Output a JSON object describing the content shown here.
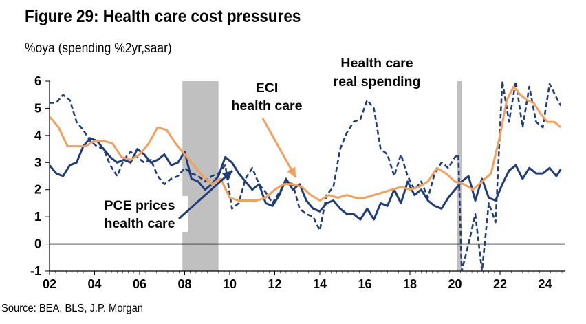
{
  "title": "Figure 29: Health care cost pressures",
  "subtitle": "%oya (spending %2yr,saar)",
  "source": "Source: BEA, BLS, J.P. Morgan",
  "colors": {
    "pce": "#1f3d78",
    "eci": "#f5a05a",
    "spending": "#1f3d78",
    "recession": "#c0c0c0"
  },
  "chart_data": {
    "type": "line",
    "title": "Figure 29: Health care cost pressures",
    "ylabel": "%oya (spending %2yr,saar)",
    "xlim": [
      2002.0,
      2024.9
    ],
    "ylim": [
      -1,
      6
    ],
    "yticks": [
      -1,
      0,
      1,
      2,
      3,
      4,
      5,
      6
    ],
    "ytick_labels": [
      "-1",
      "0",
      "1",
      "2",
      "3",
      "4",
      "5",
      "6"
    ],
    "xticks": [
      2002,
      2004,
      2006,
      2008,
      2010,
      2012,
      2014,
      2016,
      2018,
      2020,
      2022,
      2024
    ],
    "xtick_labels": [
      "02",
      "04",
      "06",
      "08",
      "10",
      "12",
      "14",
      "16",
      "18",
      "20",
      "22",
      "24"
    ],
    "recessions": [
      [
        2007.9,
        2009.5
      ],
      [
        2020.1,
        2020.3
      ]
    ],
    "zero_line": true,
    "grid": false,
    "annotations": [
      {
        "text": [
          "PCE prices",
          "health care"
        ],
        "series": "PCE prices health care"
      },
      {
        "text": [
          "ECI",
          "health care"
        ],
        "series": "ECI health care"
      },
      {
        "text": [
          "Health care",
          "real spending"
        ],
        "series": "Health care real spending"
      }
    ],
    "series": [
      {
        "name": "PCE prices health care",
        "style": "solid",
        "color": "#1f3d78",
        "x": [
          2002.0,
          2002.3,
          2002.6,
          2002.9,
          2003.2,
          2003.5,
          2003.8,
          2004.1,
          2004.4,
          2004.7,
          2005.0,
          2005.3,
          2005.6,
          2005.9,
          2006.2,
          2006.5,
          2006.8,
          2007.1,
          2007.4,
          2007.7,
          2008.0,
          2008.3,
          2008.6,
          2008.9,
          2009.2,
          2009.5,
          2009.8,
          2010.1,
          2010.4,
          2010.7,
          2011.0,
          2011.3,
          2011.6,
          2011.9,
          2012.2,
          2012.5,
          2012.8,
          2013.1,
          2013.4,
          2013.7,
          2014.0,
          2014.3,
          2014.6,
          2014.9,
          2015.2,
          2015.5,
          2015.8,
          2016.1,
          2016.4,
          2016.7,
          2017.0,
          2017.3,
          2017.6,
          2017.9,
          2018.2,
          2018.5,
          2018.8,
          2019.1,
          2019.4,
          2019.7,
          2020.0,
          2020.3,
          2020.6,
          2020.9,
          2021.2,
          2021.5,
          2021.8,
          2022.1,
          2022.4,
          2022.7,
          2023.0,
          2023.3,
          2023.6,
          2023.9,
          2024.2,
          2024.5,
          2024.7
        ],
        "y": [
          2.9,
          2.6,
          2.5,
          2.9,
          3.0,
          3.6,
          3.9,
          3.8,
          3.5,
          3.2,
          3.0,
          3.1,
          3.0,
          3.5,
          3.3,
          3.0,
          3.1,
          3.3,
          2.9,
          3.0,
          3.4,
          2.4,
          2.3,
          2.0,
          2.2,
          2.5,
          3.2,
          3.0,
          2.6,
          2.3,
          2.0,
          2.2,
          1.5,
          1.4,
          1.8,
          2.4,
          2.0,
          2.2,
          1.6,
          1.3,
          1.2,
          1.5,
          1.6,
          1.3,
          1.1,
          1.1,
          0.9,
          1.3,
          0.9,
          1.5,
          1.4,
          2.0,
          1.5,
          2.3,
          1.8,
          2.0,
          1.6,
          1.4,
          1.3,
          1.7,
          2.0,
          2.3,
          2.5,
          1.6,
          2.4,
          1.7,
          1.6,
          2.2,
          2.7,
          2.9,
          2.4,
          2.8,
          2.6,
          2.6,
          2.8,
          2.5,
          2.75
        ]
      },
      {
        "name": "ECI health care",
        "style": "solid",
        "color": "#f5a05a",
        "x": [
          2002.0,
          2002.4,
          2002.8,
          2003.2,
          2003.6,
          2004.0,
          2004.4,
          2004.8,
          2005.2,
          2005.6,
          2006.0,
          2006.4,
          2006.8,
          2007.2,
          2007.6,
          2008.0,
          2008.4,
          2008.8,
          2009.2,
          2009.6,
          2010.0,
          2010.4,
          2010.8,
          2011.2,
          2011.6,
          2012.0,
          2012.4,
          2012.8,
          2013.2,
          2013.6,
          2014.0,
          2014.4,
          2014.8,
          2015.2,
          2015.6,
          2016.0,
          2016.4,
          2016.8,
          2017.2,
          2017.6,
          2018.0,
          2018.4,
          2018.8,
          2019.2,
          2019.6,
          2020.0,
          2020.4,
          2020.8,
          2021.2,
          2021.6,
          2022.0,
          2022.3,
          2022.6,
          2022.9,
          2023.2,
          2023.5,
          2023.8,
          2024.1,
          2024.4,
          2024.7
        ],
        "y": [
          4.7,
          4.3,
          3.6,
          3.6,
          3.6,
          3.8,
          3.8,
          3.7,
          3.2,
          3.1,
          3.3,
          3.7,
          4.3,
          4.2,
          3.7,
          3.3,
          2.9,
          2.5,
          2.2,
          2.4,
          1.7,
          1.6,
          1.6,
          1.6,
          1.7,
          2.0,
          2.2,
          2.2,
          2.1,
          1.8,
          1.6,
          1.8,
          1.7,
          1.8,
          1.7,
          1.7,
          1.8,
          1.9,
          2.0,
          2.1,
          2.0,
          2.1,
          2.3,
          2.8,
          2.6,
          2.3,
          2.2,
          2.0,
          2.3,
          2.6,
          4.0,
          5.3,
          5.8,
          5.5,
          5.3,
          5.2,
          4.8,
          4.5,
          4.5,
          4.3
        ]
      },
      {
        "name": "Health care real spending",
        "style": "dashed",
        "color": "#1f3d78",
        "x": [
          2002.0,
          2002.3,
          2002.6,
          2002.9,
          2003.2,
          2003.5,
          2003.8,
          2004.1,
          2004.4,
          2004.7,
          2005.0,
          2005.3,
          2005.6,
          2005.9,
          2006.2,
          2006.5,
          2006.8,
          2007.1,
          2007.4,
          2007.7,
          2008.0,
          2008.3,
          2008.6,
          2008.9,
          2009.2,
          2009.5,
          2009.8,
          2010.1,
          2010.4,
          2010.7,
          2011.0,
          2011.3,
          2011.6,
          2011.9,
          2012.2,
          2012.5,
          2012.8,
          2013.1,
          2013.4,
          2013.7,
          2014.0,
          2014.3,
          2014.6,
          2014.9,
          2015.2,
          2015.5,
          2015.8,
          2016.1,
          2016.4,
          2016.7,
          2017.0,
          2017.3,
          2017.6,
          2017.9,
          2018.2,
          2018.5,
          2018.8,
          2019.1,
          2019.4,
          2019.7,
          2020.0,
          2020.15,
          2020.3,
          2020.6,
          2020.9,
          2021.2,
          2021.5,
          2021.8,
          2022.1,
          2022.4,
          2022.7,
          2023.0,
          2023.3,
          2023.6,
          2023.9,
          2024.2,
          2024.5,
          2024.7
        ],
        "y": [
          5.2,
          5.2,
          5.5,
          5.3,
          4.5,
          4.2,
          3.8,
          3.6,
          3.5,
          2.9,
          2.5,
          3.1,
          3.4,
          3.2,
          3.0,
          3.1,
          2.5,
          2.2,
          2.4,
          2.5,
          2.8,
          2.6,
          2.5,
          2.3,
          2.5,
          2.6,
          2.9,
          1.3,
          1.5,
          2.4,
          2.8,
          2.2,
          1.9,
          1.5,
          1.9,
          2.3,
          2.2,
          1.3,
          1.1,
          1.0,
          0.5,
          1.8,
          2.1,
          3.5,
          4.1,
          4.5,
          4.6,
          5.3,
          5.0,
          3.5,
          3.3,
          2.5,
          3.3,
          2.5,
          2.0,
          2.3,
          1.7,
          2.6,
          3.0,
          2.8,
          3.2,
          3.3,
          -1.0,
          0.0,
          1.1,
          -1.0,
          1.5,
          0.8,
          6.0,
          4.5,
          6.0,
          4.3,
          5.8,
          4.5,
          4.3,
          5.9,
          5.4,
          5.1
        ]
      }
    ]
  }
}
